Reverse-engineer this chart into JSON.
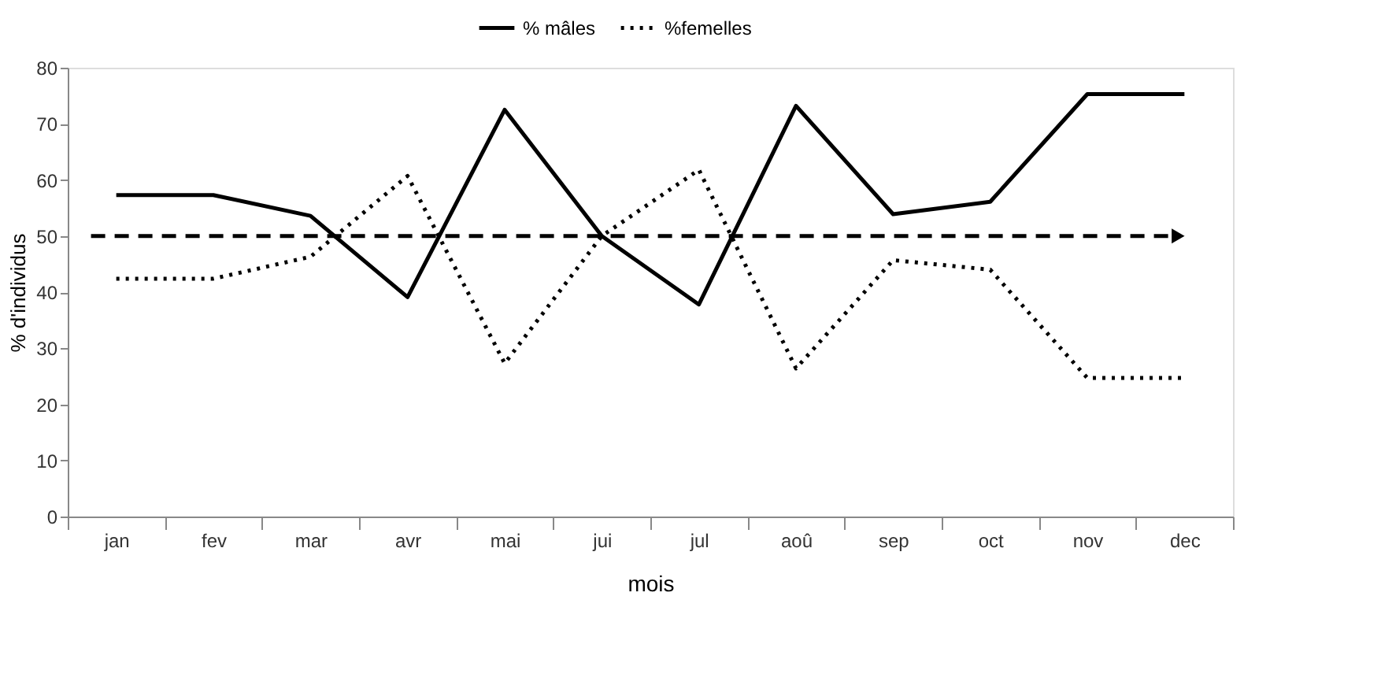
{
  "chart_data": {
    "type": "line",
    "xlabel": "mois",
    "ylabel": "% d'individus",
    "categories": [
      "jan",
      "fev",
      "mar",
      "avr",
      "mai",
      "jui",
      "jul",
      "aoû",
      "sep",
      "oct",
      "nov",
      "dec"
    ],
    "series": [
      {
        "name": "% mâles",
        "color": "#000000",
        "line_style": "solid",
        "values": [
          57.3,
          57.3,
          53.6,
          39.1,
          72.5,
          50,
          37.8,
          73.2,
          53.9,
          56.1,
          75.3,
          75.3
        ]
      },
      {
        "name": "%femelles",
        "color": "#000000",
        "line_style": "dotted",
        "values": [
          42.4,
          42.4,
          46.3,
          60.7,
          27.3,
          50,
          61.8,
          26.4,
          45.7,
          44.0,
          24.7,
          24.7
        ]
      }
    ],
    "ylim": [
      0,
      80
    ],
    "yticks": [
      0,
      10,
      20,
      30,
      40,
      50,
      60,
      70,
      80
    ],
    "ref_lines": [
      {
        "axis": "y",
        "value": 50,
        "line_style": "dashed",
        "color": "#000000"
      }
    ],
    "grid": false,
    "legend": "top",
    "marker": "none"
  }
}
